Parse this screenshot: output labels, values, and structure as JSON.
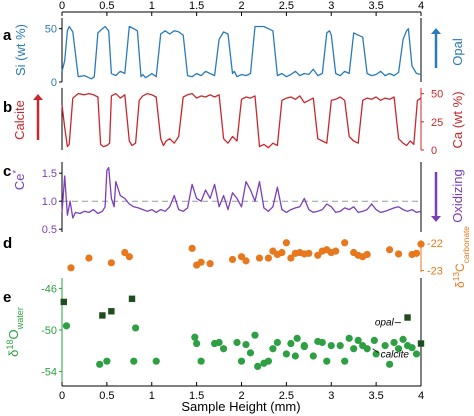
{
  "chart_data": [
    {
      "panel": "a",
      "type": "line",
      "ylabel_left": "Si (wt %)",
      "ylabel_right": "Opal",
      "yticks": [
        "0",
        "50"
      ],
      "ylim": [
        0,
        60
      ],
      "xlim": [
        0,
        4
      ],
      "colors": {
        "line": "#2b7bb9",
        "arrow": "#2b7bb9"
      },
      "series": [
        {
          "x": [
            0.0,
            0.03,
            0.06,
            0.08,
            0.12,
            0.18,
            0.25,
            0.3,
            0.33,
            0.36,
            0.4,
            0.45,
            0.48,
            0.5,
            0.52,
            0.55,
            0.6,
            0.65,
            0.7,
            0.75,
            0.8,
            0.84,
            0.88,
            0.9,
            0.93,
            0.97,
            1.0,
            1.05,
            1.1,
            1.15,
            1.2,
            1.25,
            1.3,
            1.35,
            1.4,
            1.45,
            1.5,
            1.55,
            1.6,
            1.65,
            1.7,
            1.75,
            1.8,
            1.85,
            1.9,
            1.92,
            1.95,
            2.0,
            2.05,
            2.1,
            2.15,
            2.2,
            2.25,
            2.3,
            2.35,
            2.4,
            2.45,
            2.5,
            2.55,
            2.6,
            2.65,
            2.7,
            2.75,
            2.8,
            2.85,
            2.9,
            2.95,
            2.98,
            3.0,
            3.05,
            3.1,
            3.15,
            3.2,
            3.25,
            3.3,
            3.35,
            3.4,
            3.45,
            3.5,
            3.55,
            3.6,
            3.65,
            3.7,
            3.75,
            3.8,
            3.84,
            3.86,
            3.9,
            3.95,
            4.0
          ],
          "y": [
            10,
            20,
            48,
            52,
            47,
            5,
            6,
            4,
            3,
            5,
            46,
            50,
            52,
            50,
            48,
            8,
            6,
            10,
            8,
            52,
            50,
            48,
            5,
            7,
            4,
            6,
            8,
            5,
            45,
            48,
            45,
            48,
            47,
            44,
            6,
            5,
            8,
            6,
            10,
            8,
            6,
            40,
            47,
            45,
            8,
            10,
            5,
            7,
            6,
            8,
            52,
            52,
            52,
            50,
            48,
            6,
            8,
            5,
            7,
            10,
            6,
            8,
            7,
            12,
            6,
            8,
            46,
            48,
            44,
            8,
            6,
            10,
            8,
            46,
            44,
            42,
            8,
            6,
            7,
            10,
            6,
            8,
            6,
            9,
            40,
            48,
            50,
            15,
            8,
            7
          ]
        }
      ]
    },
    {
      "panel": "b",
      "type": "line",
      "ylabel_left": "Calcite",
      "ylabel_right": "Ca (wt %)",
      "yticks": [
        "0",
        "25",
        "50"
      ],
      "ylim": [
        0,
        55
      ],
      "xlim": [
        0,
        4
      ],
      "colors": {
        "line": "#c8282d",
        "arrow": "#c8282d"
      },
      "series": [
        {
          "x": [
            0.0,
            0.03,
            0.06,
            0.08,
            0.12,
            0.18,
            0.25,
            0.3,
            0.35,
            0.4,
            0.43,
            0.46,
            0.5,
            0.53,
            0.55,
            0.6,
            0.65,
            0.7,
            0.75,
            0.78,
            0.82,
            0.86,
            0.9,
            0.95,
            1.0,
            1.05,
            1.1,
            1.13,
            1.16,
            1.2,
            1.25,
            1.3,
            1.35,
            1.4,
            1.45,
            1.5,
            1.55,
            1.6,
            1.65,
            1.7,
            1.75,
            1.8,
            1.85,
            1.9,
            1.95,
            2.0,
            2.05,
            2.1,
            2.15,
            2.2,
            2.25,
            2.3,
            2.35,
            2.4,
            2.45,
            2.5,
            2.55,
            2.6,
            2.65,
            2.7,
            2.75,
            2.8,
            2.85,
            2.9,
            2.95,
            3.0,
            3.05,
            3.1,
            3.15,
            3.2,
            3.25,
            3.3,
            3.35,
            3.4,
            3.45,
            3.5,
            3.55,
            3.6,
            3.65,
            3.7,
            3.75,
            3.8,
            3.84,
            3.88,
            3.92,
            3.96,
            4.0
          ],
          "y": [
            40,
            20,
            3,
            5,
            46,
            50,
            49,
            50,
            49,
            47,
            5,
            3,
            4,
            6,
            48,
            50,
            46,
            49,
            8,
            4,
            6,
            44,
            48,
            50,
            49,
            47,
            10,
            4,
            8,
            10,
            6,
            12,
            47,
            49,
            50,
            46,
            48,
            47,
            49,
            47,
            49,
            10,
            6,
            12,
            8,
            45,
            47,
            46,
            48,
            3,
            5,
            2,
            6,
            4,
            44,
            46,
            47,
            45,
            48,
            42,
            44,
            46,
            10,
            8,
            6,
            44,
            45,
            47,
            44,
            12,
            8,
            6,
            44,
            46,
            45,
            47,
            44,
            46,
            45,
            47,
            10,
            6,
            4,
            8,
            5,
            44,
            46
          ]
        }
      ]
    },
    {
      "panel": "c",
      "type": "line",
      "ylabel_left": "Ce*",
      "ylabel_right": "Oxidizing",
      "yticks": [
        "0.5",
        "1.0",
        "1.5"
      ],
      "ylim": [
        0.45,
        1.7
      ],
      "xlim": [
        0,
        4
      ],
      "reference_line": 1.0,
      "colors": {
        "line": "#7b3fb8",
        "arrow": "#7b3fb8",
        "reference": "#999999"
      },
      "series": [
        {
          "x": [
            0.0,
            0.03,
            0.06,
            0.09,
            0.12,
            0.15,
            0.2,
            0.25,
            0.3,
            0.35,
            0.4,
            0.45,
            0.48,
            0.5,
            0.52,
            0.55,
            0.58,
            0.6,
            0.65,
            0.7,
            0.75,
            0.8,
            0.85,
            0.9,
            0.95,
            1.0,
            1.05,
            1.1,
            1.15,
            1.2,
            1.25,
            1.3,
            1.35,
            1.4,
            1.45,
            1.5,
            1.55,
            1.6,
            1.65,
            1.7,
            1.75,
            1.8,
            1.85,
            1.9,
            1.95,
            2.0,
            2.05,
            2.1,
            2.15,
            2.2,
            2.25,
            2.3,
            2.35,
            2.4,
            2.45,
            2.5,
            2.55,
            2.6,
            2.65,
            2.7,
            2.75,
            2.8,
            2.85,
            2.9,
            2.95,
            3.0,
            3.05,
            3.1,
            3.15,
            3.2,
            3.25,
            3.3,
            3.35,
            3.4,
            3.45,
            3.5,
            3.55,
            3.6,
            3.65,
            3.7,
            3.75,
            3.8,
            3.85,
            3.9,
            3.95,
            4.0
          ],
          "y": [
            0.8,
            1.45,
            0.75,
            1.0,
            0.7,
            0.8,
            0.78,
            0.82,
            0.8,
            0.85,
            0.78,
            0.82,
            0.9,
            1.55,
            1.6,
            1.05,
            0.9,
            1.35,
            1.1,
            1.05,
            0.95,
            0.9,
            0.88,
            0.85,
            0.82,
            0.85,
            0.8,
            0.85,
            0.82,
            0.9,
            1.1,
            0.85,
            0.82,
            0.88,
            1.3,
            1.05,
            1.0,
            1.2,
            1.05,
            1.3,
            0.9,
            1.1,
            0.85,
            1.15,
            1.05,
            0.9,
            1.35,
            1.2,
            1.0,
            1.35,
            0.88,
            0.82,
            0.9,
            1.25,
            0.85,
            0.8,
            0.85,
            0.88,
            0.9,
            1.05,
            0.85,
            0.8,
            0.82,
            0.85,
            0.95,
            0.9,
            0.8,
            0.82,
            0.88,
            0.85,
            0.9,
            0.8,
            0.82,
            0.85,
            0.95,
            0.85,
            0.8,
            0.82,
            0.85,
            0.88,
            0.9,
            0.85,
            0.82,
            0.85,
            0.8,
            0.82
          ]
        }
      ]
    },
    {
      "panel": "d",
      "type": "scatter",
      "ylabel_right": "δ13C_carbonate",
      "yticks": [
        "-22",
        "-23"
      ],
      "ylim": [
        -23.05,
        -21.9
      ],
      "xlim": [
        0,
        4
      ],
      "colors": {
        "marker": "#e8781e",
        "axis": "#e8781e"
      },
      "series": [
        {
          "x": [
            0.3,
            0.7,
            1.45,
            1.9,
            2.2,
            2.5,
            2.55,
            2.95,
            3.15,
            3.25,
            3.35,
            3.65,
            4.0,
            1.5,
            1.55,
            1.65,
            2.0,
            2.05,
            2.3,
            2.35,
            2.45,
            2.4,
            2.6,
            2.65,
            2.7,
            2.75,
            2.85,
            2.9,
            3.0,
            3.05,
            3.3,
            3.4,
            3.75,
            3.9,
            3.95,
            0.1,
            0.55,
            0.75
          ],
          "y": [
            -22.55,
            -22.35,
            -22.2,
            -22.6,
            -22.55,
            -22.0,
            -22.55,
            -22.25,
            -22.0,
            -22.35,
            -22.5,
            -22.25,
            -22.05,
            -22.8,
            -22.7,
            -22.75,
            -22.5,
            -22.65,
            -22.55,
            -22.3,
            -22.35,
            -22.42,
            -22.38,
            -22.35,
            -22.4,
            -22.38,
            -22.45,
            -22.3,
            -22.35,
            -22.3,
            -22.45,
            -22.42,
            -22.4,
            -22.42,
            -22.38,
            -22.9,
            -22.72,
            -22.5
          ]
        }
      ]
    },
    {
      "panel": "e",
      "type": "scatter",
      "ylabel_left": "δ18O_water",
      "yticks": [
        "-46",
        "-50",
        "-54"
      ],
      "ylim": [
        -55,
        -45
      ],
      "xlim": [
        0,
        4
      ],
      "xticks": [
        "0",
        "0.5",
        "1",
        "1.5",
        "2",
        "2.5",
        "3",
        "3.5",
        "4"
      ],
      "xlabel": "Sample Height (mm)",
      "colors": {
        "calcite": "#2ea043",
        "opal": "#1e4d1e",
        "axis": "#2ea043"
      },
      "annotations": [
        {
          "text": "opal",
          "x": 3.82,
          "y": -49.2
        },
        {
          "text": "calcite",
          "x": 3.55,
          "y": -51.7
        }
      ],
      "series": [
        {
          "name": "calcite",
          "marker": "circle",
          "x": [
            0.05,
            0.5,
            0.82,
            1.05,
            1.55,
            1.5,
            1.7,
            1.8,
            1.95,
            2.0,
            2.05,
            2.1,
            2.25,
            2.3,
            2.4,
            2.5,
            2.55,
            2.6,
            2.7,
            2.8,
            2.85,
            2.9,
            2.95,
            3.0,
            3.1,
            3.15,
            3.2,
            3.25,
            3.3,
            3.35,
            3.4,
            3.5,
            3.6,
            3.65,
            3.7,
            3.75,
            3.8,
            3.85,
            3.9,
            3.95,
            0.42,
            0.8,
            1.48,
            1.75,
            2.15,
            2.7,
            2.18,
            2.35,
            2.62,
            3.48
          ],
          "y": [
            -49.6,
            -53.0,
            -49.8,
            -53.0,
            -53.0,
            -51.3,
            -51.3,
            -51.8,
            -51.2,
            -53.0,
            -51.4,
            -52.2,
            -53.2,
            -53.0,
            -51.2,
            -52.3,
            -51.3,
            -52.5,
            -51.5,
            -52.5,
            -51.1,
            -51.2,
            -53.0,
            -51.5,
            -51.5,
            -53.0,
            -50.8,
            -51.8,
            -51.0,
            -51.5,
            -51.8,
            -52.3,
            -51.5,
            -53.3,
            -51.2,
            -51.8,
            -50.9,
            -51.5,
            -51.7,
            -52.3,
            -53.3,
            -53.0,
            -50.7,
            -51.2,
            -50.5,
            -51.6,
            -53.5,
            -51.8,
            -50.8,
            -51.0
          ]
        },
        {
          "name": "opal",
          "marker": "square",
          "x": [
            0.02,
            0.45,
            0.55,
            0.78,
            3.85,
            4.0
          ],
          "y": [
            -47.3,
            -48.6,
            -48.2,
            -47.0,
            -48.8,
            -51.3
          ]
        }
      ]
    }
  ]
}
